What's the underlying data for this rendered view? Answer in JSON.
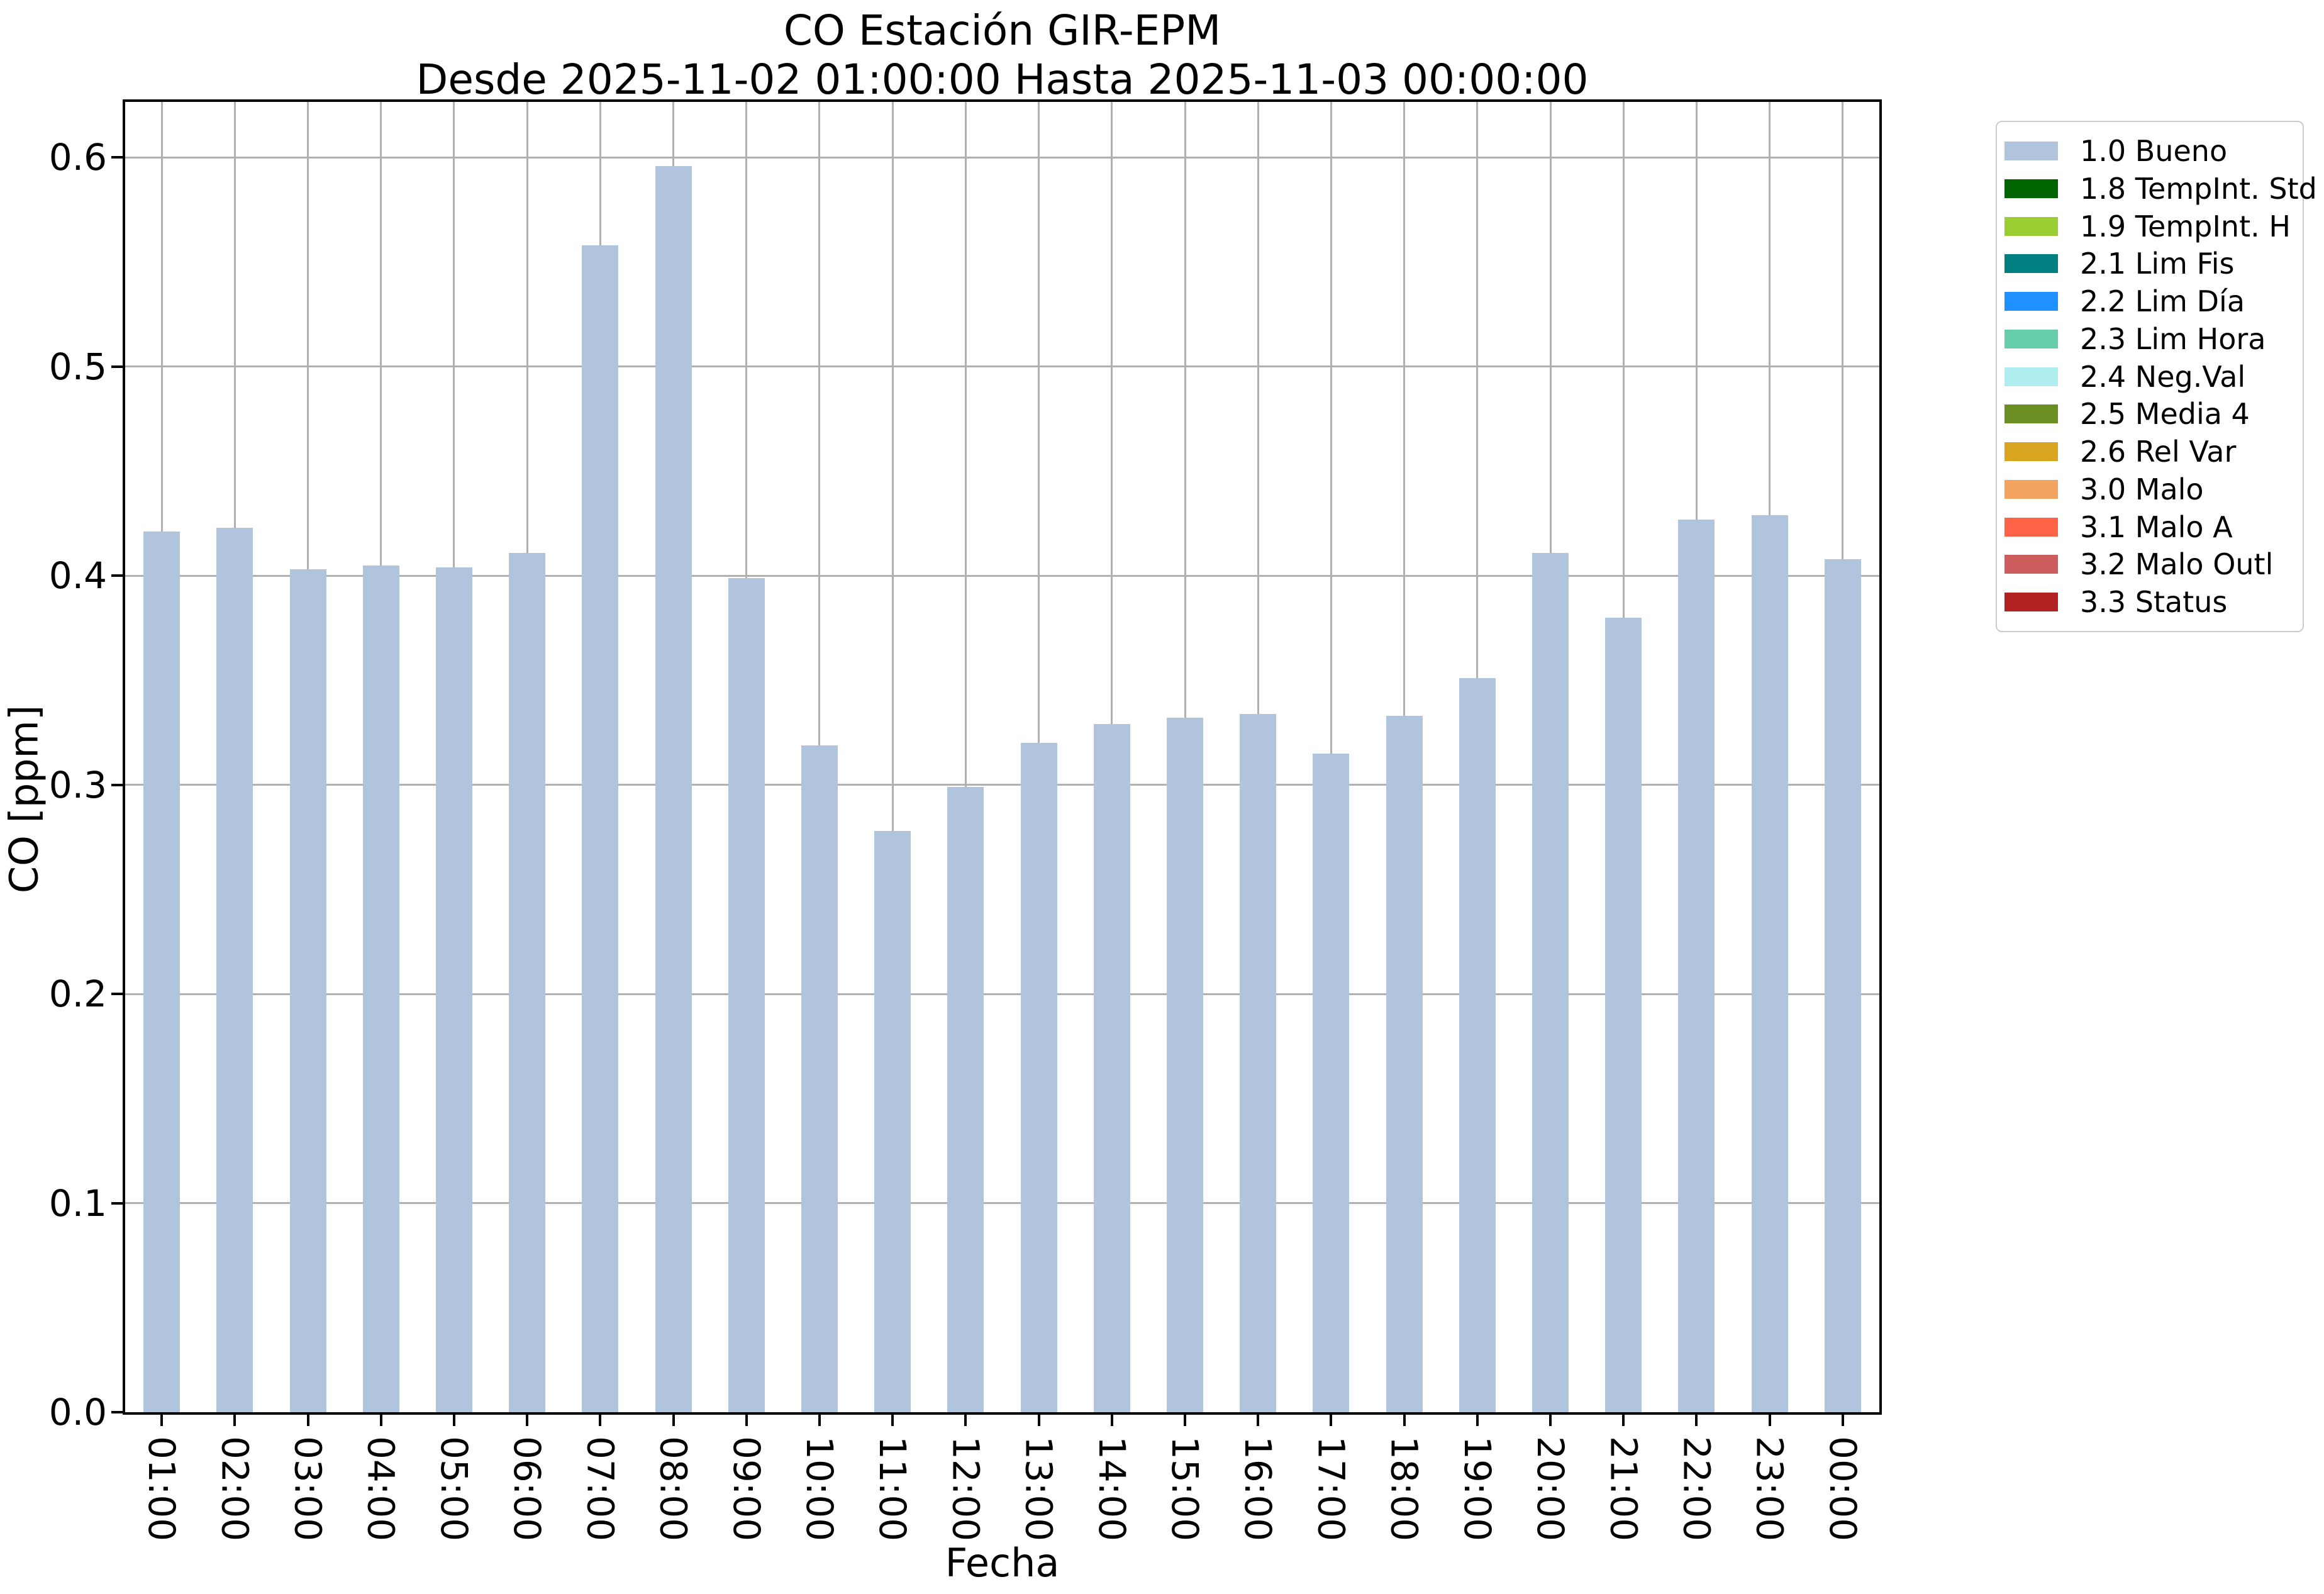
{
  "chart_data": {
    "type": "bar",
    "title": "CO Estación GIR-EPM",
    "subtitle": "Desde 2025-11-02 01:00:00 Hasta 2025-11-03 00:00:00",
    "xlabel": "Fecha",
    "ylabel": "CO [ppm]",
    "categories": [
      "01:00",
      "02:00",
      "03:00",
      "04:00",
      "05:00",
      "06:00",
      "07:00",
      "08:00",
      "09:00",
      "10:00",
      "11:00",
      "12:00",
      "13:00",
      "14:00",
      "15:00",
      "16:00",
      "17:00",
      "18:00",
      "19:00",
      "20:00",
      "21:00",
      "22:00",
      "23:00",
      "00:00"
    ],
    "series": [
      {
        "name": "1.0 Bueno",
        "color": "#b0c4de",
        "values": [
          0.421,
          0.423,
          0.403,
          0.405,
          0.404,
          0.411,
          0.558,
          0.596,
          0.399,
          0.319,
          0.278,
          0.299,
          0.32,
          0.329,
          0.332,
          0.334,
          0.315,
          0.333,
          0.351,
          0.411,
          0.38,
          0.427,
          0.429,
          0.408
        ]
      }
    ],
    "ylim": [
      0,
      0.6266
    ],
    "ytick_values": [
      0.0,
      0.1,
      0.2,
      0.3,
      0.4,
      0.5,
      0.6
    ],
    "grid": true,
    "grid_color": "#b0b0b0",
    "bar_color": "#b0c4de",
    "legend_position": "outside-upper-right",
    "legend": [
      {
        "label": "1.0 Bueno",
        "color": "#b0c4de"
      },
      {
        "label": "1.8 TempInt. Std",
        "color": "#006400"
      },
      {
        "label": "1.9 TempInt. H",
        "color": "#9acd32"
      },
      {
        "label": "2.1 Lim Fis",
        "color": "#008080"
      },
      {
        "label": "2.2 Lim Día",
        "color": "#1e90ff"
      },
      {
        "label": "2.3 Lim Hora",
        "color": "#66cdaa"
      },
      {
        "label": "2.4 Neg.Val",
        "color": "#afeeee"
      },
      {
        "label": "2.5 Media 4",
        "color": "#6b8e23"
      },
      {
        "label": "2.6 Rel Var",
        "color": "#daa520"
      },
      {
        "label": "3.0 Malo",
        "color": "#f4a460"
      },
      {
        "label": "3.1 Malo A",
        "color": "#ff6347"
      },
      {
        "label": "3.2 Malo Outl",
        "color": "#cd5c5c"
      },
      {
        "label": "3.3 Status",
        "color": "#b22222"
      }
    ]
  }
}
